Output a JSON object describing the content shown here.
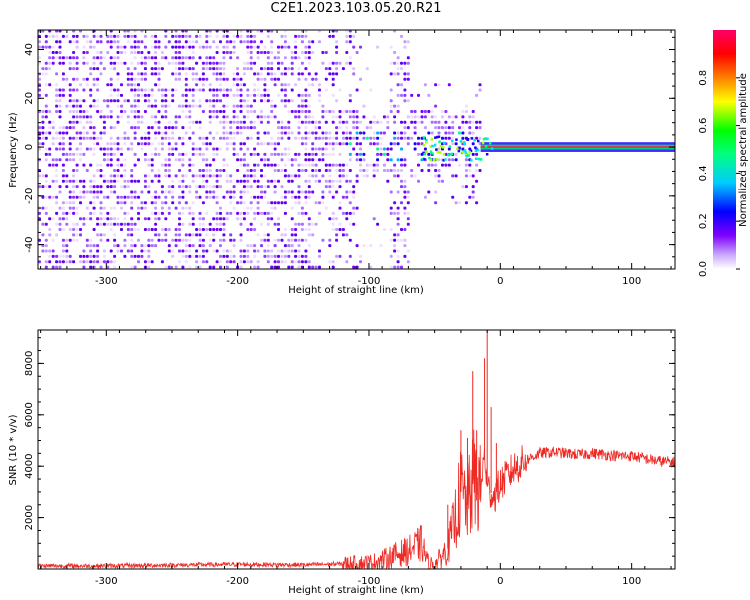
{
  "title": "C2E1.2023.103.05.20.R21",
  "chart_data": [
    {
      "type": "heatmap",
      "xlabel": "Height of straight line (km)",
      "ylabel": "Frequency (Hz)",
      "xlim": [
        -352,
        133
      ],
      "ylim": [
        -50,
        48
      ],
      "xticks": [
        -300,
        -200,
        -100,
        0,
        100
      ],
      "yticks": [
        -40,
        -20,
        0,
        20,
        40
      ],
      "colorbar": {
        "label": "Normalized spectral amplitude",
        "ticks": [
          "0.0",
          "0.2",
          "0.4",
          "0.6",
          "0.8"
        ],
        "range": [
          0,
          1
        ],
        "colormap": [
          "#ffffff",
          "#7f00ff",
          "#0000ff",
          "#00ffff",
          "#00ff00",
          "#ffff00",
          "#ff0000",
          "#ff0066"
        ]
      }
    },
    {
      "type": "line",
      "xlabel": "Height of straight line (km)",
      "ylabel": "SNR (10 * v/v)",
      "xlim": [
        -352,
        133
      ],
      "ylim": [
        0,
        9300
      ],
      "xticks": [
        -300,
        -200,
        -100,
        0,
        100
      ],
      "yticks": [
        2000,
        4000,
        6000,
        8000
      ],
      "color": "#ee2a24",
      "series": [
        {
          "x": [
            -352,
            -300,
            -250,
            -200,
            -150,
            -120,
            -100,
            -90,
            -80,
            -70,
            -60,
            -55,
            -50,
            -40,
            -35,
            -30,
            -25,
            -20,
            -15,
            -12,
            -10,
            -5,
            0,
            10,
            20,
            30,
            40,
            50,
            60,
            70,
            80,
            90,
            100,
            110,
            120,
            133
          ],
          "y": [
            120,
            120,
            150,
            180,
            160,
            200,
            240,
            350,
            550,
            700,
            1000,
            250,
            150,
            800,
            1800,
            3000,
            2500,
            3500,
            3000,
            4500,
            3200,
            2800,
            3300,
            3900,
            4250,
            4500,
            4550,
            4500,
            4450,
            4500,
            4450,
            4400,
            4400,
            4300,
            4200,
            4150
          ]
        }
      ],
      "spikes": [
        {
          "x": -40,
          "y": 2500
        },
        {
          "x": -30,
          "y": 5400
        },
        {
          "x": -25,
          "y": 5100
        },
        {
          "x": -21,
          "y": 7700
        },
        {
          "x": -18,
          "y": 5400
        },
        {
          "x": -12,
          "y": 8200
        },
        {
          "x": -10,
          "y": 9300
        },
        {
          "x": -7,
          "y": 6300
        },
        {
          "x": -3,
          "y": 4900
        }
      ]
    }
  ]
}
